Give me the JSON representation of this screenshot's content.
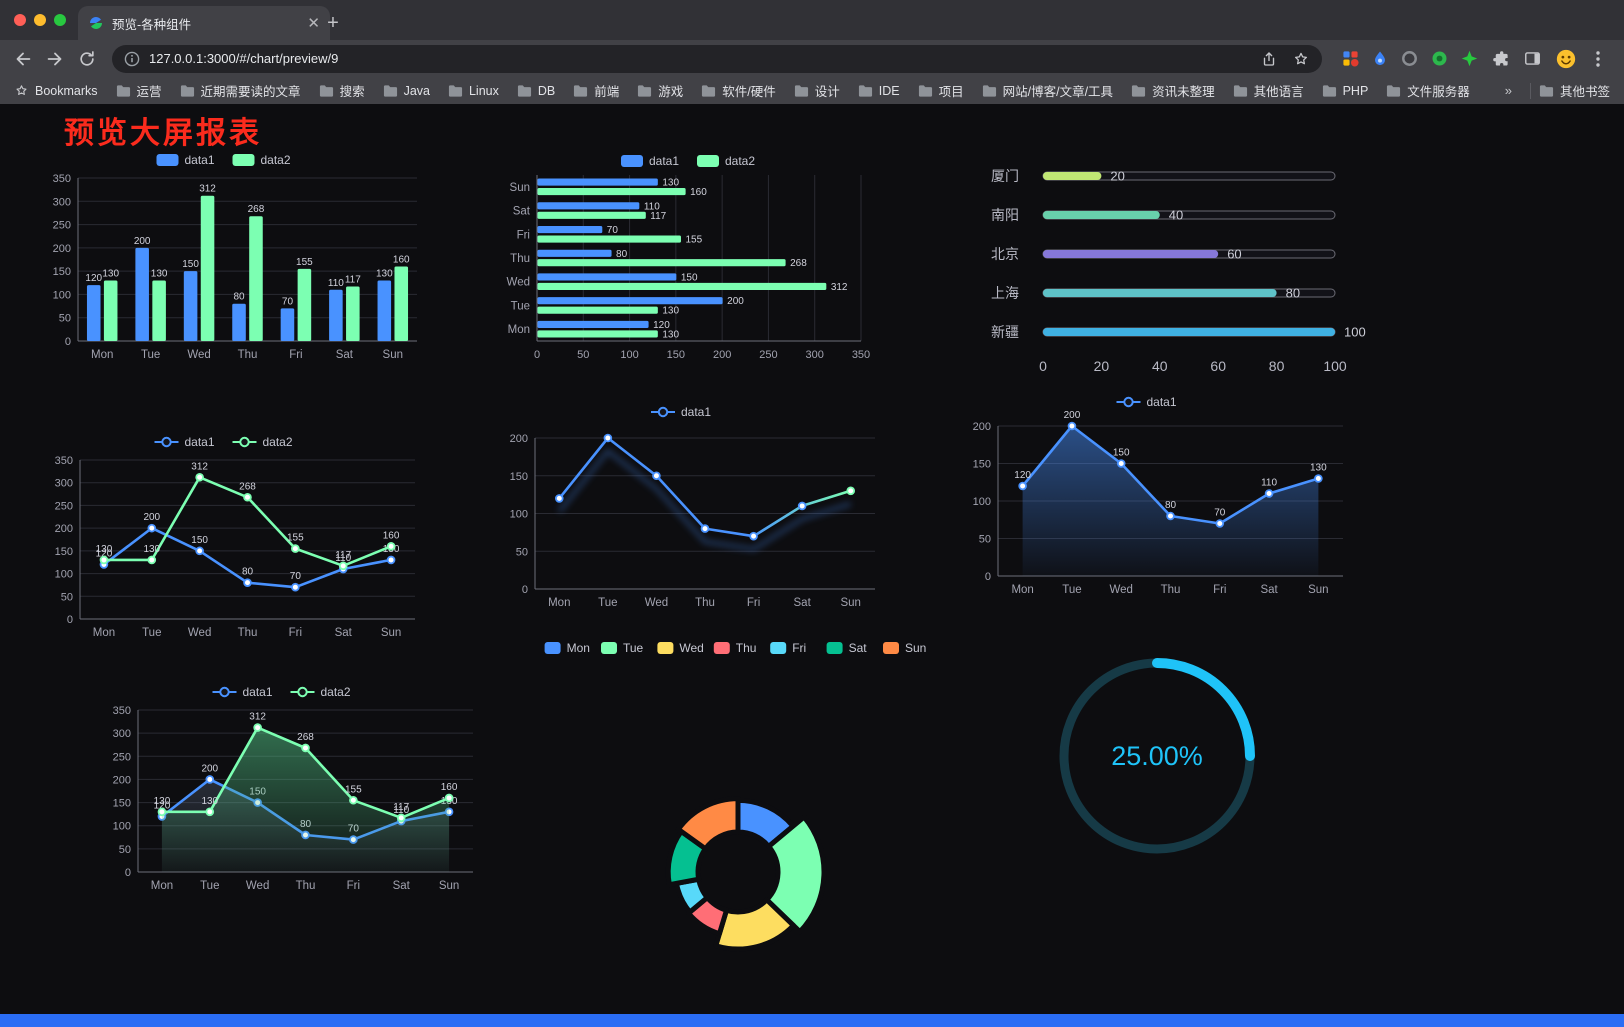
{
  "browser": {
    "tab_title": "预览-各种组件",
    "url": "127.0.0.1:3000/#/chart/preview/9",
    "bookmarks_label": "Bookmarks",
    "bookmarks": [
      "运营",
      "近期需要读的文章",
      "搜索",
      "Java",
      "Linux",
      "DB",
      "前端",
      "游戏",
      "软件/硬件",
      "设计",
      "IDE",
      "项目",
      "网站/博客/文章/工具",
      "资讯未整理",
      "其他语言",
      "PHP",
      "文件服务器"
    ],
    "overflow_chevron": "»",
    "other_bookmarks": "其他书签"
  },
  "page": {
    "title": "预览大屏报表",
    "title_color": "#fb2b1d",
    "accent_blue": "#4992ff",
    "accent_green": "#7cffb2"
  },
  "chart_data": [
    {
      "type": "bar",
      "title": "grouped bar chart",
      "categories": [
        "Mon",
        "Tue",
        "Wed",
        "Thu",
        "Fri",
        "Sat",
        "Sun"
      ],
      "ylim": [
        0,
        350
      ],
      "yticks": [
        0,
        50,
        100,
        150,
        200,
        250,
        300,
        350
      ],
      "labels": true,
      "series": [
        {
          "name": "data1",
          "color": "#4992ff",
          "values": [
            120,
            200,
            150,
            80,
            70,
            110,
            130
          ]
        },
        {
          "name": "data2",
          "color": "#7cffb2",
          "values": [
            130,
            130,
            312,
            268,
            155,
            117,
            160
          ]
        }
      ]
    },
    {
      "type": "hbar",
      "title": "horizontal grouped bar chart",
      "categories": [
        "Mon",
        "Tue",
        "Wed",
        "Thu",
        "Fri",
        "Sat",
        "Sun"
      ],
      "xlim": [
        0,
        350
      ],
      "xticks": [
        0,
        50,
        100,
        150,
        200,
        250,
        300,
        350
      ],
      "labels": true,
      "series": [
        {
          "name": "data1",
          "color": "#4992ff",
          "values": [
            120,
            200,
            150,
            80,
            70,
            110,
            130
          ]
        },
        {
          "name": "data2",
          "color": "#7cffb2",
          "values": [
            130,
            130,
            312,
            268,
            155,
            117,
            160
          ]
        }
      ]
    },
    {
      "type": "capsule",
      "title": "city progress bars",
      "max": 100,
      "ticks": [
        0,
        20,
        40,
        60,
        80,
        100
      ],
      "items": [
        {
          "label": "厦门",
          "value": 20,
          "color": "#c0e674"
        },
        {
          "label": "南阳",
          "value": 40,
          "color": "#68d0ab"
        },
        {
          "label": "北京",
          "value": 60,
          "color": "#8678d9"
        },
        {
          "label": "上海",
          "value": 80,
          "color": "#5ec2c8"
        },
        {
          "label": "新疆",
          "value": 100,
          "color": "#3fb1e3"
        }
      ]
    },
    {
      "type": "line",
      "title": "two-series line chart",
      "categories": [
        "Mon",
        "Tue",
        "Wed",
        "Thu",
        "Fri",
        "Sat",
        "Sun"
      ],
      "ylim": [
        0,
        350
      ],
      "yticks": [
        0,
        50,
        100,
        150,
        200,
        250,
        300,
        350
      ],
      "labels": true,
      "series": [
        {
          "name": "data1",
          "color": "#4992ff",
          "values": [
            120,
            200,
            150,
            80,
            70,
            110,
            130
          ]
        },
        {
          "name": "data2",
          "color": "#7cffb2",
          "values": [
            130,
            130,
            312,
            268,
            155,
            117,
            160
          ]
        }
      ]
    },
    {
      "type": "line",
      "title": "gradient line with trail",
      "categories": [
        "Mon",
        "Tue",
        "Wed",
        "Thu",
        "Fri",
        "Sat",
        "Sun"
      ],
      "ylim": [
        0,
        200
      ],
      "yticks": [
        0,
        50,
        100,
        150,
        200
      ],
      "labels": false,
      "top": 42,
      "gradient": true,
      "trail": true,
      "series": [
        {
          "name": "data1",
          "color": "#4992ff",
          "color2": "#7cffb2",
          "values": [
            120,
            200,
            150,
            80,
            70,
            110,
            130
          ]
        }
      ]
    },
    {
      "type": "line",
      "title": "area line chart",
      "categories": [
        "Mon",
        "Tue",
        "Wed",
        "Thu",
        "Fri",
        "Sat",
        "Sun"
      ],
      "ylim": [
        0,
        200
      ],
      "yticks": [
        0,
        50,
        100,
        150,
        200
      ],
      "labels": true,
      "top": 40,
      "series": [
        {
          "name": "data1",
          "color": "#4992ff",
          "values": [
            120,
            200,
            150,
            80,
            70,
            110,
            130
          ],
          "area": "blue"
        }
      ]
    },
    {
      "type": "line",
      "title": "two-series line with green area",
      "categories": [
        "Mon",
        "Tue",
        "Wed",
        "Thu",
        "Fri",
        "Sat",
        "Sun"
      ],
      "ylim": [
        0,
        350
      ],
      "yticks": [
        0,
        50,
        100,
        150,
        200,
        250,
        300,
        350
      ],
      "labels": true,
      "series": [
        {
          "name": "data1",
          "color": "#4992ff",
          "values": [
            120,
            200,
            150,
            80,
            70,
            110,
            130
          ],
          "area": "faint"
        },
        {
          "name": "data2",
          "color": "#7cffb2",
          "values": [
            130,
            130,
            312,
            268,
            155,
            117,
            160
          ],
          "area": "green"
        }
      ]
    },
    {
      "type": "pie",
      "title": "rose donut chart",
      "categories": [
        "Mon",
        "Tue",
        "Wed",
        "Thu",
        "Fri",
        "Sat",
        "Sun"
      ],
      "values": [
        120,
        200,
        150,
        80,
        70,
        110,
        130
      ],
      "colors": [
        "#4992ff",
        "#7cffb2",
        "#fddd60",
        "#ff6e76",
        "#58d9f9",
        "#05c091",
        "#ff8a45"
      ]
    },
    {
      "type": "gauge",
      "title": "percent gauge",
      "value": 25,
      "label": "25.00%",
      "color": "#1fc3f8",
      "track_color": "#163a46"
    }
  ]
}
